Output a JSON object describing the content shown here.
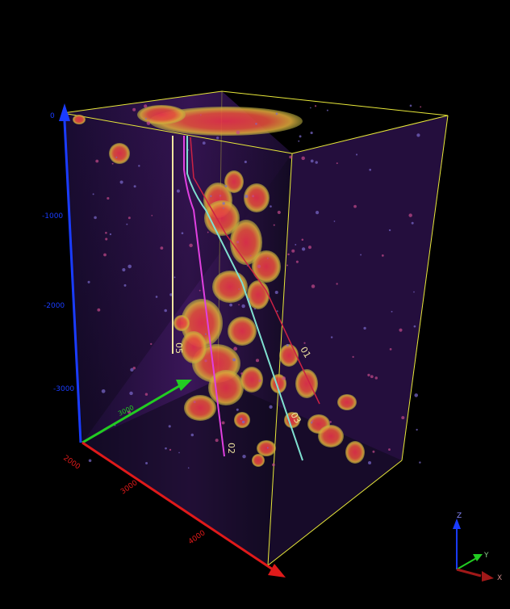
{
  "scene": {
    "background": "#000000",
    "volume_color": "#4a1a6e",
    "box_color": "#e8e83a",
    "blob_color": "#e03a3a",
    "blob_halo_color": "#d9a63a"
  },
  "axes": {
    "z_color": "#1a3cff",
    "y_color": "#22cc22",
    "x_color": "#e01a1a",
    "z_ticks": [
      "0",
      "-1000",
      "-2000",
      "-3000"
    ],
    "y_ticks": [
      "3000"
    ],
    "x_ticks": [
      "2000",
      "3000",
      "4000"
    ]
  },
  "wells": [
    {
      "label": "05",
      "color": "#f0e6a0"
    },
    {
      "label": "02",
      "color": "#e040e0"
    },
    {
      "label": "03",
      "color": "#7fe0d0"
    },
    {
      "label": "01",
      "color": "#cc2244"
    }
  ],
  "orientation": {
    "z_label": "Z",
    "y_label": "Y",
    "x_label": "X"
  }
}
